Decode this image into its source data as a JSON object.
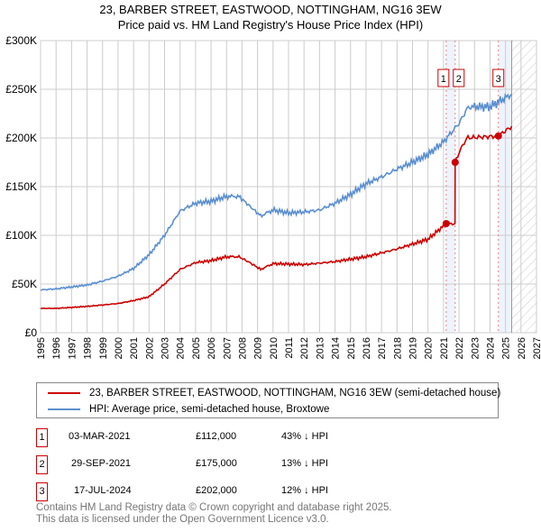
{
  "chart_data": {
    "type": "line",
    "title": "23, BARBER STREET, EASTWOOD, NOTTINGHAM, NG16 3EW",
    "subtitle": "Price paid vs. HM Land Registry's House Price Index (HPI)",
    "xlim": [
      1995,
      2027
    ],
    "ylim": [
      0,
      300000
    ],
    "x_ticks": [
      "1995",
      "1996",
      "1997",
      "1998",
      "1999",
      "2000",
      "2001",
      "2002",
      "2003",
      "2004",
      "2005",
      "2006",
      "2007",
      "2008",
      "2009",
      "2010",
      "2011",
      "2012",
      "2013",
      "2014",
      "2015",
      "2016",
      "2017",
      "2018",
      "2019",
      "2020",
      "2021",
      "2022",
      "2023",
      "2024",
      "2025",
      "2026",
      "2027"
    ],
    "y_ticks": [
      {
        "v": 0,
        "label": "£0"
      },
      {
        "v": 50000,
        "label": "£50K"
      },
      {
        "v": 100000,
        "label": "£100K"
      },
      {
        "v": 150000,
        "label": "£150K"
      },
      {
        "v": 200000,
        "label": "£200K"
      },
      {
        "v": 250000,
        "label": "£250K"
      },
      {
        "v": 300000,
        "label": "£300K"
      }
    ],
    "grid": true,
    "forecast_start": 2025.4,
    "series": [
      {
        "name": "23, BARBER STREET, EASTWOOD, NOTTINGHAM, NG16 3EW (semi-detached house)",
        "color": "#cc0000",
        "x": [
          1995,
          1996,
          1998,
          2000,
          2001,
          2002,
          2003,
          2004,
          2005,
          2006,
          2007,
          2007.8,
          2008.5,
          2009.2,
          2010,
          2012,
          2014,
          2016,
          2018,
          2020,
          2021.17,
          2021.74,
          2021.75,
          2022,
          2022.5,
          2024.54,
          2025.4
        ],
        "y": [
          25000,
          25000,
          27000,
          30000,
          33000,
          37000,
          50000,
          65000,
          72000,
          74000,
          78000,
          78000,
          72000,
          65000,
          71000,
          70000,
          73000,
          78000,
          86000,
          96000,
          112000,
          112000,
          175000,
          185000,
          200000,
          202000,
          212000
        ]
      },
      {
        "name": "HPI: Average price, semi-detached house, Broxtowe",
        "color": "#5b8fd0",
        "x": [
          1995,
          1996,
          1997,
          1998,
          1999,
          2000,
          2001,
          2002,
          2003,
          2004,
          2005,
          2006,
          2007,
          2007.8,
          2008.5,
          2009.2,
          2010,
          2011,
          2012,
          2013,
          2014,
          2015,
          2016,
          2017,
          2018,
          2019,
          2020,
          2021,
          2022,
          2022.6,
          2023,
          2024,
          2025.4
        ],
        "y": [
          44000,
          45000,
          47000,
          49000,
          53000,
          58000,
          66000,
          80000,
          100000,
          125000,
          133000,
          135000,
          140000,
          140000,
          130000,
          120000,
          126000,
          123000,
          124000,
          126000,
          133000,
          142000,
          153000,
          160000,
          168000,
          175000,
          183000,
          196000,
          215000,
          232000,
          232000,
          232000,
          245000
        ]
      }
    ],
    "sales": [
      {
        "id": "1",
        "x": 2021.17,
        "y": 112000,
        "date": "03-MAR-2021",
        "price": "£112,000",
        "hpi": "43% ↓ HPI"
      },
      {
        "id": "2",
        "x": 2021.75,
        "y": 175000,
        "date": "29-SEP-2021",
        "price": "£175,000",
        "hpi": "13% ↓ HPI"
      },
      {
        "id": "3",
        "x": 2024.54,
        "y": 202000,
        "date": "17-JUL-2024",
        "price": "£202,000",
        "hpi": "12% ↓ HPI"
      }
    ]
  },
  "footer": [
    "Contains HM Land Registry data © Crown copyright and database right 2025.",
    "This data is licensed under the Open Government Licence v3.0."
  ]
}
